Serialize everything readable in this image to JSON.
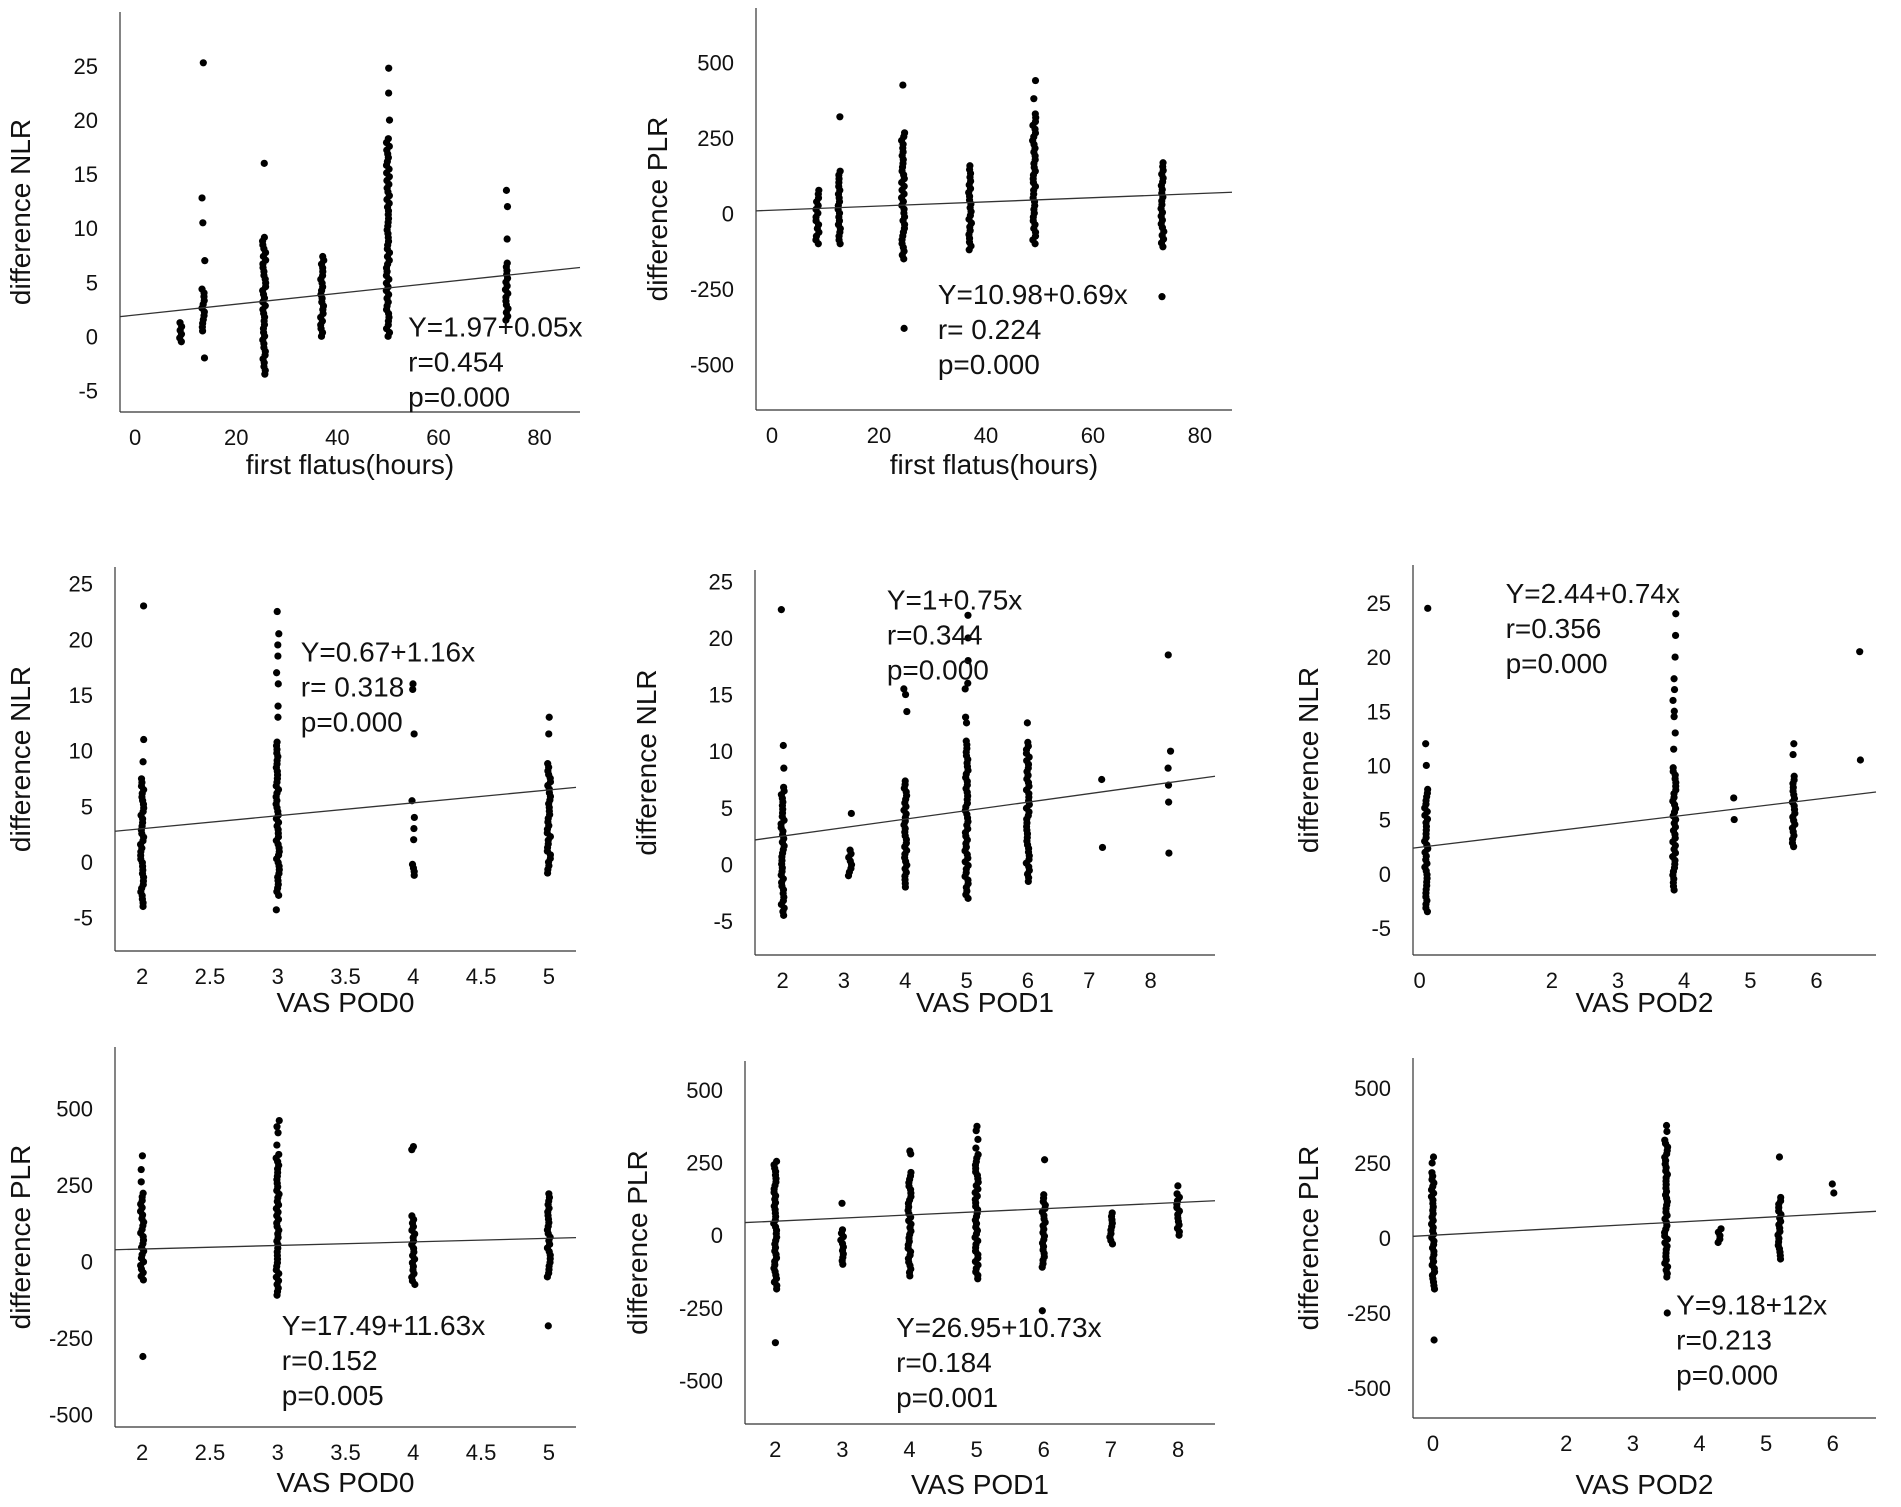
{
  "figure": "Scatter plots with linear regression of inflammatory ratio differences vs. recovery indicators",
  "chart_data": [
    {
      "id": "p1",
      "type": "scatter",
      "xlabel": "first flatus(hours)",
      "ylabel": "difference NLR",
      "xlim": [
        -3,
        88
      ],
      "ylim": [
        -7,
        30
      ],
      "xticks": [
        0,
        20,
        40,
        60,
        80
      ],
      "yticks": [
        25,
        20,
        15,
        10,
        5,
        0,
        -5
      ],
      "regression": {
        "intercept": 1.97,
        "slope": 0.05
      },
      "annotations": [
        "Y=1.97+0.05x",
        "r=0.454",
        "p=0.000"
      ],
      "annot_pos": [
        54,
        0
      ],
      "groups": [
        {
          "x": 9,
          "min": -0.5,
          "max": 1.5,
          "outliers": []
        },
        {
          "x": 13.5,
          "min": 0.5,
          "max": 4.5,
          "outliers": [
            -2,
            7,
            10.5,
            12.8,
            25.3
          ]
        },
        {
          "x": 25.5,
          "min": -3.5,
          "max": 9.5,
          "outliers": [
            16
          ]
        },
        {
          "x": 37,
          "min": 0,
          "max": 7.5,
          "outliers": []
        },
        {
          "x": 50,
          "min": 0,
          "max": 18.5,
          "outliers": [
            20,
            22.5,
            24.8
          ]
        },
        {
          "x": 73.5,
          "min": 1.5,
          "max": 7,
          "outliers": [
            9,
            12,
            13.5
          ]
        }
      ]
    },
    {
      "id": "p2",
      "type": "scatter",
      "xlabel": "first flatus(hours)",
      "ylabel": "difference PLR",
      "xlim": [
        -3,
        86
      ],
      "ylim": [
        -650,
        680
      ],
      "xticks": [
        0,
        20,
        40,
        60,
        80
      ],
      "yticks": [
        500,
        250,
        0,
        -250,
        -500
      ],
      "regression": {
        "intercept": 10.98,
        "slope": 0.69
      },
      "annotations": [
        "Y=10.98+0.69x",
        "r= 0.224",
        "p=0.000"
      ],
      "annot_pos": [
        31,
        -300
      ],
      "groups": [
        {
          "x": 8.5,
          "min": -100,
          "max": 80,
          "outliers": []
        },
        {
          "x": 12.5,
          "min": -100,
          "max": 150,
          "outliers": [
            320
          ]
        },
        {
          "x": 24.5,
          "min": -150,
          "max": 270,
          "outliers": [
            -380,
            425
          ]
        },
        {
          "x": 37,
          "min": -120,
          "max": 160,
          "outliers": []
        },
        {
          "x": 49,
          "min": -100,
          "max": 340,
          "outliers": [
            380,
            440
          ]
        },
        {
          "x": 73,
          "min": -110,
          "max": 170,
          "outliers": [
            -275
          ]
        }
      ]
    },
    {
      "id": "p3",
      "type": "scatter",
      "xlabel": "VAS POD0",
      "ylabel": "difference NLR",
      "xlim": [
        1.8,
        5.2
      ],
      "ylim": [
        -8,
        26.5
      ],
      "xticks": [
        2,
        2.5,
        3,
        3.5,
        4,
        4.5,
        5
      ],
      "yticks": [
        25,
        20,
        15,
        10,
        5,
        0,
        -5
      ],
      "regression": {
        "intercept": 0.67,
        "slope": 1.16
      },
      "annotations": [
        "Y=0.67+1.16x",
        "r= 0.318",
        "p=0.000"
      ],
      "annot_pos": [
        3.17,
        18
      ],
      "groups": [
        {
          "x": 2,
          "min": -4,
          "max": 7.5,
          "outliers": [
            9,
            11,
            23
          ]
        },
        {
          "x": 3,
          "min": -3,
          "max": 11,
          "outliers": [
            -4.3,
            13,
            14,
            16,
            17,
            18.5,
            19.5,
            20.5,
            22.5
          ]
        },
        {
          "x": 4,
          "min": -1.2,
          "max": 0,
          "outliers": [
            2,
            3,
            4,
            5.5,
            11.5,
            15.5,
            16
          ]
        },
        {
          "x": 5,
          "min": -1,
          "max": 9,
          "outliers": [
            11.5,
            13
          ]
        }
      ]
    },
    {
      "id": "p4",
      "type": "scatter",
      "xlabel": "VAS POD1",
      "ylabel": "difference NLR",
      "xlim": [
        1.55,
        9.05
      ],
      "ylim": [
        -8,
        26
      ],
      "xticks": [
        2,
        3,
        4,
        5,
        6,
        7,
        8
      ],
      "yticks": [
        25,
        20,
        15,
        10,
        5,
        0,
        -5
      ],
      "regression": {
        "intercept": 1,
        "slope": 0.75
      },
      "annotations": [
        "Y=1+0.75x",
        "r=0.344",
        "p=0.000"
      ],
      "annot_pos": [
        3.7,
        22.5
      ],
      "groups": [
        {
          "x": 2,
          "min": -4.5,
          "max": 7,
          "outliers": [
            8.5,
            10.5,
            22.5
          ]
        },
        {
          "x": 3.1,
          "min": -1,
          "max": 1.5,
          "outliers": [
            4.5
          ]
        },
        {
          "x": 4,
          "min": -2,
          "max": 7.5,
          "outliers": [
            13.5,
            15,
            15.5
          ]
        },
        {
          "x": 5,
          "min": -3,
          "max": 11,
          "outliers": [
            12.5,
            13,
            15.5,
            16,
            18,
            20,
            22
          ]
        },
        {
          "x": 6,
          "min": -1.5,
          "max": 11,
          "outliers": [
            12.5
          ]
        },
        {
          "x": 7.2,
          "min": 1.5,
          "max": 1.5,
          "outliers": [
            7.5
          ]
        },
        {
          "x": 8.3,
          "min": 1,
          "max": 1,
          "outliers": [
            5.5,
            7,
            8.5,
            10,
            18.5
          ]
        }
      ]
    },
    {
      "id": "p5",
      "type": "scatter",
      "xlabel": "VAS POD2",
      "ylabel": "difference NLR",
      "xlim": [
        -0.1,
        6.9
      ],
      "ylim": [
        -7.5,
        28.5
      ],
      "xticks": [
        0,
        2,
        3,
        4,
        5,
        6
      ],
      "yticks": [
        25,
        20,
        15,
        10,
        5,
        0,
        -5
      ],
      "regression": {
        "intercept": 2.44,
        "slope": 0.74
      },
      "annotations": [
        "Y=2.44+0.74x",
        "r=0.356",
        "p=0.000"
      ],
      "annot_pos": [
        1.3,
        25
      ],
      "groups": [
        {
          "x": 0.1,
          "min": -3.5,
          "max": 8,
          "outliers": [
            10,
            12,
            24.5
          ]
        },
        {
          "x": 3.85,
          "min": -1.5,
          "max": 10,
          "outliers": [
            11.5,
            13,
            14.5,
            15,
            16,
            17,
            18,
            20,
            22,
            24
          ]
        },
        {
          "x": 4.75,
          "min": 5,
          "max": 5,
          "outliers": [
            7
          ]
        },
        {
          "x": 5.65,
          "min": 2.5,
          "max": 9,
          "outliers": [
            11,
            12
          ]
        },
        {
          "x": 6.65,
          "min": 10.5,
          "max": 10.5,
          "outliers": [
            20.5
          ]
        }
      ]
    },
    {
      "id": "p6",
      "type": "scatter",
      "xlabel": "VAS POD0",
      "ylabel": "difference PLR",
      "xlim": [
        1.8,
        5.2
      ],
      "ylim": [
        -540,
        700
      ],
      "xticks": [
        2,
        2.5,
        3,
        3.5,
        4,
        4.5,
        5
      ],
      "yticks": [
        500,
        250,
        0,
        -250,
        -500
      ],
      "regression": {
        "intercept": 17.49,
        "slope": 11.63
      },
      "annotations": [
        "Y=17.49+11.63x",
        "r=0.152",
        "p=0.005"
      ],
      "annot_pos": [
        3.03,
        -240
      ],
      "groups": [
        {
          "x": 2,
          "min": -60,
          "max": 230,
          "outliers": [
            -310,
            260,
            300,
            345
          ]
        },
        {
          "x": 3,
          "min": -110,
          "max": 350,
          "outliers": [
            380,
            420,
            440,
            460
          ]
        },
        {
          "x": 4,
          "min": -75,
          "max": 160,
          "outliers": [
            365,
            375
          ]
        },
        {
          "x": 5,
          "min": -50,
          "max": 230,
          "outliers": [
            -210
          ]
        }
      ]
    },
    {
      "id": "p7",
      "type": "scatter",
      "xlabel": "VAS POD1",
      "ylabel": "difference PLR",
      "xlim": [
        1.55,
        8.55
      ],
      "ylim": [
        -650,
        600
      ],
      "xticks": [
        2,
        3,
        4,
        5,
        6,
        7,
        8
      ],
      "yticks": [
        500,
        250,
        0,
        -250,
        -500
      ],
      "regression": {
        "intercept": 26.95,
        "slope": 10.73
      },
      "annotations": [
        "Y=26.95+10.73x",
        "r=0.184",
        "p=0.001"
      ],
      "annot_pos": [
        3.8,
        -350
      ],
      "groups": [
        {
          "x": 2,
          "min": -185,
          "max": 260,
          "outliers": [
            -370
          ]
        },
        {
          "x": 3,
          "min": -100,
          "max": 25,
          "outliers": [
            110
          ]
        },
        {
          "x": 4,
          "min": -140,
          "max": 220,
          "outliers": [
            280,
            290
          ]
        },
        {
          "x": 5,
          "min": -150,
          "max": 280,
          "outliers": [
            300,
            330,
            360,
            375
          ]
        },
        {
          "x": 6,
          "min": -110,
          "max": 150,
          "outliers": [
            -260,
            260
          ]
        },
        {
          "x": 7,
          "min": -30,
          "max": 80,
          "outliers": []
        },
        {
          "x": 8,
          "min": 0,
          "max": 150,
          "outliers": [
            170
          ]
        }
      ]
    },
    {
      "id": "p8",
      "type": "scatter",
      "xlabel": "VAS POD2",
      "ylabel": "difference PLR",
      "xlim": [
        -0.3,
        6.65
      ],
      "ylim": [
        -600,
        600
      ],
      "xticks": [
        0,
        2,
        3,
        4,
        5,
        6
      ],
      "yticks": [
        500,
        250,
        0,
        -250,
        -500
      ],
      "regression": {
        "intercept": 9.18,
        "slope": 12
      },
      "annotations": [
        "Y=9.18+12x",
        "r=0.213",
        "p=0.000"
      ],
      "annot_pos": [
        3.65,
        -255
      ],
      "groups": [
        {
          "x": 0,
          "min": -170,
          "max": 220,
          "outliers": [
            -340,
            250,
            270
          ]
        },
        {
          "x": 3.5,
          "min": -130,
          "max": 330,
          "outliers": [
            -250,
            355,
            375
          ]
        },
        {
          "x": 4.3,
          "min": -15,
          "max": 40,
          "outliers": []
        },
        {
          "x": 5.2,
          "min": -70,
          "max": 140,
          "outliers": [
            270
          ]
        },
        {
          "x": 6,
          "min": 150,
          "max": 150,
          "outliers": [
            180
          ]
        }
      ]
    }
  ]
}
